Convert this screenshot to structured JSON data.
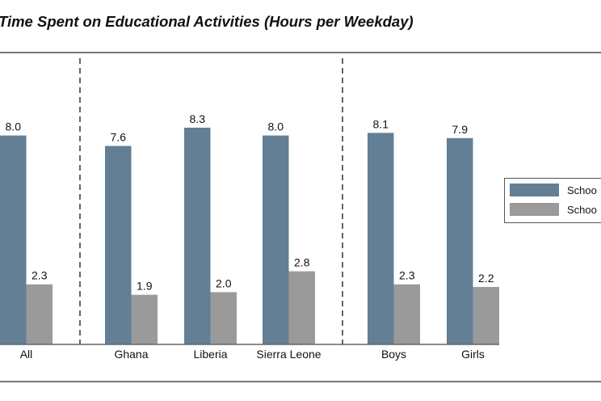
{
  "chart_data": {
    "type": "bar",
    "title": "Time Spent on Educational Activities (Hours per Weekday)",
    "xlabel": "",
    "ylabel": "",
    "ylim": [
      0,
      8.3
    ],
    "grid": false,
    "categories": [
      "All",
      "Ghana",
      "Liberia",
      "Sierra Leone",
      "Boys",
      "Girls"
    ],
    "group_separators_after": [
      "All",
      "Sierra Leone"
    ],
    "series": [
      {
        "name": "Schoo",
        "color": "#627f96",
        "values": [
          8.0,
          7.6,
          8.3,
          8.0,
          8.1,
          7.9
        ],
        "labels": [
          "8.0",
          "7.6",
          "8.3",
          "8.0",
          "8.1",
          "7.9"
        ]
      },
      {
        "name": "Schoo",
        "color": "#9a9a9a",
        "values": [
          2.3,
          1.9,
          2.0,
          2.8,
          2.3,
          2.2
        ],
        "labels": [
          "2.3",
          "1.9",
          "2.0",
          "2.8",
          "2.3",
          "2.2"
        ]
      }
    ],
    "legend_position": "right"
  }
}
